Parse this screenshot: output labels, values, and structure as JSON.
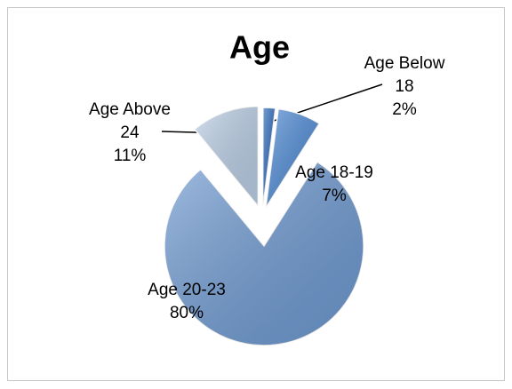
{
  "chart_data": {
    "type": "pie",
    "title": "Age",
    "categories": [
      "Age Below 18",
      "Age 18-19",
      "Age 20-23",
      "Age Above 24"
    ],
    "values": [
      2,
      7,
      80,
      11
    ],
    "value_labels": [
      "2%",
      "7%",
      "80%",
      "11%"
    ],
    "colors": [
      "#2f6cbd",
      "#4d8ad6",
      "#6f9bd3",
      "#bcd0e8"
    ]
  }
}
